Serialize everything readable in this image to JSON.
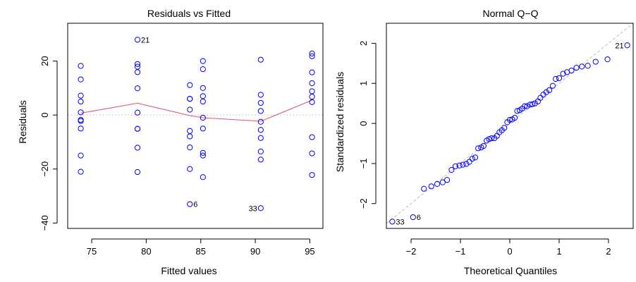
{
  "colors": {
    "points": "#0000ff",
    "smooth_line": "#df536b",
    "reference_line": "#bbbbbb",
    "axis": "#000000"
  },
  "chart_data": [
    {
      "type": "scatter",
      "title": "Residuals vs Fitted",
      "xlabel": "Fitted values",
      "ylabel": "Residuals",
      "xlim": [
        72.8,
        96.2
      ],
      "ylim": [
        -42,
        34
      ],
      "xticks": [
        75,
        80,
        85,
        90,
        95
      ],
      "yticks": [
        -40,
        -20,
        0,
        20
      ],
      "grid": false,
      "reference_line": {
        "type": "horizontal",
        "y": 0,
        "style": "dotted"
      },
      "groups": [
        {
          "x": 74.0,
          "y": [
            18.2,
            13.2,
            7.2,
            5.0,
            1.0,
            -1.8,
            -2.2,
            -5.0,
            -15.0,
            -21.0
          ]
        },
        {
          "x": 79.2,
          "y": [
            27.9,
            18.9,
            17.9,
            15.9,
            9.9,
            0.9,
            -5.1,
            -5.1,
            -12.1,
            -21.1
          ]
        },
        {
          "x": 84.0,
          "y": [
            11.1,
            6.0,
            6.0,
            2.0,
            -5.9,
            -7.9,
            -12.0,
            -20.0,
            -33.0
          ]
        },
        {
          "x": 85.2,
          "y": [
            20.0,
            17.0,
            10.0,
            7.0,
            5.0,
            -1.0,
            -5.0,
            -14.0,
            -15.0,
            -23.0
          ]
        },
        {
          "x": 90.5,
          "y": [
            20.5,
            7.5,
            4.5,
            1.5,
            -2.5,
            -5.5,
            -8.5,
            -13.5,
            -16.5,
            -34.5
          ]
        },
        {
          "x": 95.2,
          "y": [
            22.8,
            21.8,
            15.8,
            11.8,
            8.8,
            6.8,
            4.8,
            -8.2,
            -14.2,
            -22.2
          ]
        }
      ],
      "smooth": {
        "x": [
          74.0,
          79.2,
          84.0,
          85.2,
          90.5,
          95.2
        ],
        "y": [
          0.7,
          4.4,
          -0.2,
          -1.0,
          -2.3,
          5.5
        ]
      },
      "point_labels": [
        {
          "text": "21",
          "x": 79.2,
          "y": 27.9,
          "side": "right"
        },
        {
          "text": "6",
          "x": 84.0,
          "y": -33.0,
          "side": "right"
        },
        {
          "text": "33",
          "x": 90.5,
          "y": -34.5,
          "side": "left"
        }
      ]
    },
    {
      "type": "scatter",
      "title": "Normal Q−Q",
      "xlabel": "Theoretical Quantiles",
      "ylabel": "Standardized residuals",
      "xlim": [
        -2.5,
        2.5
      ],
      "ylim": [
        -2.62,
        2.5
      ],
      "xticks": [
        -2,
        -1,
        0,
        1,
        2
      ],
      "yticks": [
        -2,
        -1,
        0,
        1,
        2
      ],
      "grid": false,
      "reference_line": {
        "type": "diagonal",
        "intercept": 0,
        "slope": 1,
        "style": "dashed"
      },
      "points": [
        [
          -2.38,
          -2.45
        ],
        [
          -1.96,
          -2.34
        ],
        [
          -1.74,
          -1.63
        ],
        [
          -1.59,
          -1.57
        ],
        [
          -1.47,
          -1.51
        ],
        [
          -1.36,
          -1.47
        ],
        [
          -1.27,
          -1.41
        ],
        [
          -1.18,
          -1.16
        ],
        [
          -1.1,
          -1.07
        ],
        [
          -1.02,
          -1.05
        ],
        [
          -0.95,
          -1.03
        ],
        [
          -0.88,
          -1.01
        ],
        [
          -0.82,
          -0.96
        ],
        [
          -0.76,
          -0.88
        ],
        [
          -0.7,
          -0.85
        ],
        [
          -0.64,
          -0.62
        ],
        [
          -0.58,
          -0.6
        ],
        [
          -0.53,
          -0.56
        ],
        [
          -0.47,
          -0.43
        ],
        [
          -0.42,
          -0.39
        ],
        [
          -0.37,
          -0.37
        ],
        [
          -0.31,
          -0.37
        ],
        [
          -0.26,
          -0.31
        ],
        [
          -0.21,
          -0.22
        ],
        [
          -0.16,
          -0.17
        ],
        [
          -0.11,
          -0.11
        ],
        [
          -0.05,
          0.03
        ],
        [
          0.0,
          0.09
        ],
        [
          0.05,
          0.1
        ],
        [
          0.1,
          0.14
        ],
        [
          0.15,
          0.31
        ],
        [
          0.2,
          0.33
        ],
        [
          0.25,
          0.37
        ],
        [
          0.3,
          0.43
        ],
        [
          0.35,
          0.43
        ],
        [
          0.41,
          0.47
        ],
        [
          0.46,
          0.48
        ],
        [
          0.51,
          0.5
        ],
        [
          0.57,
          0.55
        ],
        [
          0.62,
          0.64
        ],
        [
          0.68,
          0.72
        ],
        [
          0.74,
          0.78
        ],
        [
          0.8,
          0.83
        ],
        [
          0.87,
          0.94
        ],
        [
          0.93,
          1.11
        ],
        [
          1.0,
          1.13
        ],
        [
          1.08,
          1.24
        ],
        [
          1.16,
          1.28
        ],
        [
          1.25,
          1.32
        ],
        [
          1.35,
          1.39
        ],
        [
          1.46,
          1.42
        ],
        [
          1.58,
          1.44
        ],
        [
          1.74,
          1.54
        ],
        [
          1.98,
          1.6
        ],
        [
          2.38,
          1.95
        ]
      ],
      "point_labels": [
        {
          "text": "33",
          "x": -2.38,
          "y": -2.45,
          "side": "right"
        },
        {
          "text": "6",
          "x": -1.96,
          "y": -2.34,
          "side": "right"
        },
        {
          "text": "21",
          "x": 2.38,
          "y": 1.95,
          "side": "left"
        }
      ]
    }
  ]
}
